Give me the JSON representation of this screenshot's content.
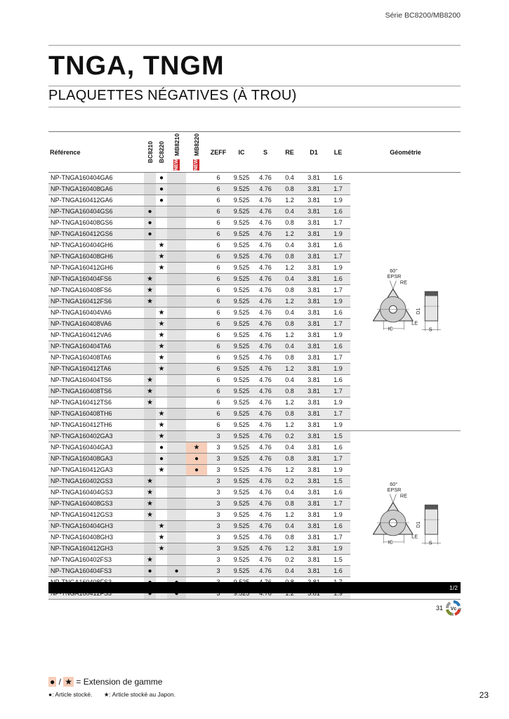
{
  "series": "Série BC8200/MB8200",
  "title": "TNGA, TNGM",
  "subtitle": "PLAQUETTES NÉGATIVES (À TROU)",
  "columns": {
    "ref": "Référence",
    "grades": [
      "BC8210",
      "BC8220",
      "MB8210",
      "MB8220"
    ],
    "new_badge": "NEW",
    "zeff": "ZEFF",
    "ic": "IC",
    "s": "S",
    "re": "RE",
    "d1": "D1",
    "le": "LE",
    "geo": "Géométrie"
  },
  "geometry_labels": {
    "angle": "60°",
    "epsr": "EPSR",
    "re": "RE",
    "ic": "IC",
    "le": "LE",
    "d1": "D1",
    "s": "S"
  },
  "marks": {
    "dot": "●",
    "star": "★"
  },
  "colors": {
    "extension": "#f6cdb8",
    "new": "#d0262b"
  },
  "rows": [
    [
      "NP-TNGA160404GA6",
      "",
      "d",
      "",
      "",
      "6",
      "9.525",
      "4.76",
      "0.4",
      "3.81",
      "1.6"
    ],
    [
      "NP-TNGA160408GA6",
      "",
      "d",
      "",
      "",
      "6",
      "9.525",
      "4.76",
      "0.8",
      "3.81",
      "1.7"
    ],
    [
      "NP-TNGA160412GA6",
      "",
      "d",
      "",
      "",
      "6",
      "9.525",
      "4.76",
      "1.2",
      "3.81",
      "1.9"
    ],
    [
      "NP-TNGA160404GS6",
      "d",
      "",
      "",
      "",
      "6",
      "9.525",
      "4.76",
      "0.4",
      "3.81",
      "1.6"
    ],
    [
      "NP-TNGA160408GS6",
      "d",
      "",
      "",
      "",
      "6",
      "9.525",
      "4.76",
      "0.8",
      "3.81",
      "1.7"
    ],
    [
      "NP-TNGA160412GS6",
      "d",
      "",
      "",
      "",
      "6",
      "9.525",
      "4.76",
      "1.2",
      "3.81",
      "1.9"
    ],
    [
      "NP-TNGA160404GH6",
      "",
      "s",
      "",
      "",
      "6",
      "9.525",
      "4.76",
      "0.4",
      "3.81",
      "1.6"
    ],
    [
      "NP-TNGA160408GH6",
      "",
      "s",
      "",
      "",
      "6",
      "9.525",
      "4.76",
      "0.8",
      "3.81",
      "1.7"
    ],
    [
      "NP-TNGA160412GH6",
      "",
      "s",
      "",
      "",
      "6",
      "9.525",
      "4.76",
      "1.2",
      "3.81",
      "1.9"
    ],
    [
      "NP-TNGA160404FS6",
      "s",
      "",
      "",
      "",
      "6",
      "9.525",
      "4.76",
      "0.4",
      "3.81",
      "1.6"
    ],
    [
      "NP-TNGA160408FS6",
      "s",
      "",
      "",
      "",
      "6",
      "9.525",
      "4.76",
      "0.8",
      "3.81",
      "1.7"
    ],
    [
      "NP-TNGA160412FS6",
      "s",
      "",
      "",
      "",
      "6",
      "9.525",
      "4.76",
      "1.2",
      "3.81",
      "1.9"
    ],
    [
      "NP-TNGA160404VA6",
      "",
      "s",
      "",
      "",
      "6",
      "9.525",
      "4.76",
      "0.4",
      "3.81",
      "1.6"
    ],
    [
      "NP-TNGA160408VA6",
      "",
      "s",
      "",
      "",
      "6",
      "9.525",
      "4.76",
      "0.8",
      "3.81",
      "1.7"
    ],
    [
      "NP-TNGA160412VA6",
      "",
      "s",
      "",
      "",
      "6",
      "9.525",
      "4.76",
      "1.2",
      "3.81",
      "1.9"
    ],
    [
      "NP-TNGA160404TA6",
      "",
      "s",
      "",
      "",
      "6",
      "9.525",
      "4.76",
      "0.4",
      "3.81",
      "1.6"
    ],
    [
      "NP-TNGA160408TA6",
      "",
      "s",
      "",
      "",
      "6",
      "9.525",
      "4.76",
      "0.8",
      "3.81",
      "1.7"
    ],
    [
      "NP-TNGA160412TA6",
      "",
      "s",
      "",
      "",
      "6",
      "9.525",
      "4.76",
      "1.2",
      "3.81",
      "1.9"
    ],
    [
      "NP-TNGA160404TS6",
      "s",
      "",
      "",
      "",
      "6",
      "9.525",
      "4.76",
      "0.4",
      "3.81",
      "1.6"
    ],
    [
      "NP-TNGA160408TS6",
      "s",
      "",
      "",
      "",
      "6",
      "9.525",
      "4.76",
      "0.8",
      "3.81",
      "1.7"
    ],
    [
      "NP-TNGA160412TS6",
      "s",
      "",
      "",
      "",
      "6",
      "9.525",
      "4.76",
      "1.2",
      "3.81",
      "1.9"
    ],
    [
      "NP-TNGA160408TH6",
      "",
      "s",
      "",
      "",
      "6",
      "9.525",
      "4.76",
      "0.8",
      "3.81",
      "1.7"
    ],
    [
      "NP-TNGA160412TH6",
      "",
      "s",
      "",
      "",
      "6",
      "9.525",
      "4.76",
      "1.2",
      "3.81",
      "1.9"
    ],
    [
      "NP-TNGA160402GA3",
      "",
      "s",
      "",
      "",
      "3",
      "9.525",
      "4.76",
      "0.2",
      "3.81",
      "1.5"
    ],
    [
      "NP-TNGA160404GA3",
      "",
      "d",
      "",
      "S",
      "3",
      "9.525",
      "4.76",
      "0.4",
      "3.81",
      "1.6"
    ],
    [
      "NP-TNGA160408GA3",
      "",
      "d",
      "",
      "D",
      "3",
      "9.525",
      "4.76",
      "0.8",
      "3.81",
      "1.7"
    ],
    [
      "NP-TNGA160412GA3",
      "",
      "s",
      "",
      "D",
      "3",
      "9.525",
      "4.76",
      "1.2",
      "3.81",
      "1.9"
    ],
    [
      "NP-TNGA160402GS3",
      "s",
      "",
      "",
      "",
      "3",
      "9.525",
      "4.76",
      "0.2",
      "3.81",
      "1.5"
    ],
    [
      "NP-TNGA160404GS3",
      "s",
      "",
      "",
      "",
      "3",
      "9.525",
      "4.76",
      "0.4",
      "3.81",
      "1.6"
    ],
    [
      "NP-TNGA160408GS3",
      "s",
      "",
      "",
      "",
      "3",
      "9.525",
      "4.76",
      "0.8",
      "3.81",
      "1.7"
    ],
    [
      "NP-TNGA160412GS3",
      "s",
      "",
      "",
      "",
      "3",
      "9.525",
      "4.76",
      "1.2",
      "3.81",
      "1.9"
    ],
    [
      "NP-TNGA160404GH3",
      "",
      "s",
      "",
      "",
      "3",
      "9.525",
      "4.76",
      "0.4",
      "3.81",
      "1.6"
    ],
    [
      "NP-TNGA160408GH3",
      "",
      "s",
      "",
      "",
      "3",
      "9.525",
      "4.76",
      "0.8",
      "3.81",
      "1.7"
    ],
    [
      "NP-TNGA160412GH3",
      "",
      "s",
      "",
      "",
      "3",
      "9.525",
      "4.76",
      "1.2",
      "3.81",
      "1.9"
    ],
    [
      "NP-TNGA160402FS3",
      "s",
      "",
      "",
      "",
      "3",
      "9.525",
      "4.76",
      "0.2",
      "3.81",
      "1.5"
    ],
    [
      "NP-TNGA160404FS3",
      "d",
      "",
      "d",
      "",
      "3",
      "9.525",
      "4.76",
      "0.4",
      "3.81",
      "1.6"
    ],
    [
      "NP-TNGA160408FS3",
      "d",
      "",
      "d",
      "",
      "3",
      "9.525",
      "4.76",
      "0.8",
      "3.81",
      "1.7"
    ],
    [
      "NP-TNGA160412FS3",
      "d",
      "",
      "d",
      "",
      "3",
      "9.525",
      "4.76",
      "1.2",
      "3.81",
      "1.9"
    ]
  ],
  "footer": {
    "page_fraction": "1/2",
    "logo_number": "31",
    "logo_text": "Vc",
    "legend_ext": "= Extension de gamme",
    "legend_dot": ": Article stocké.",
    "legend_star": ": Article stocké au Japon.",
    "slash": "/",
    "page_number": "23"
  }
}
